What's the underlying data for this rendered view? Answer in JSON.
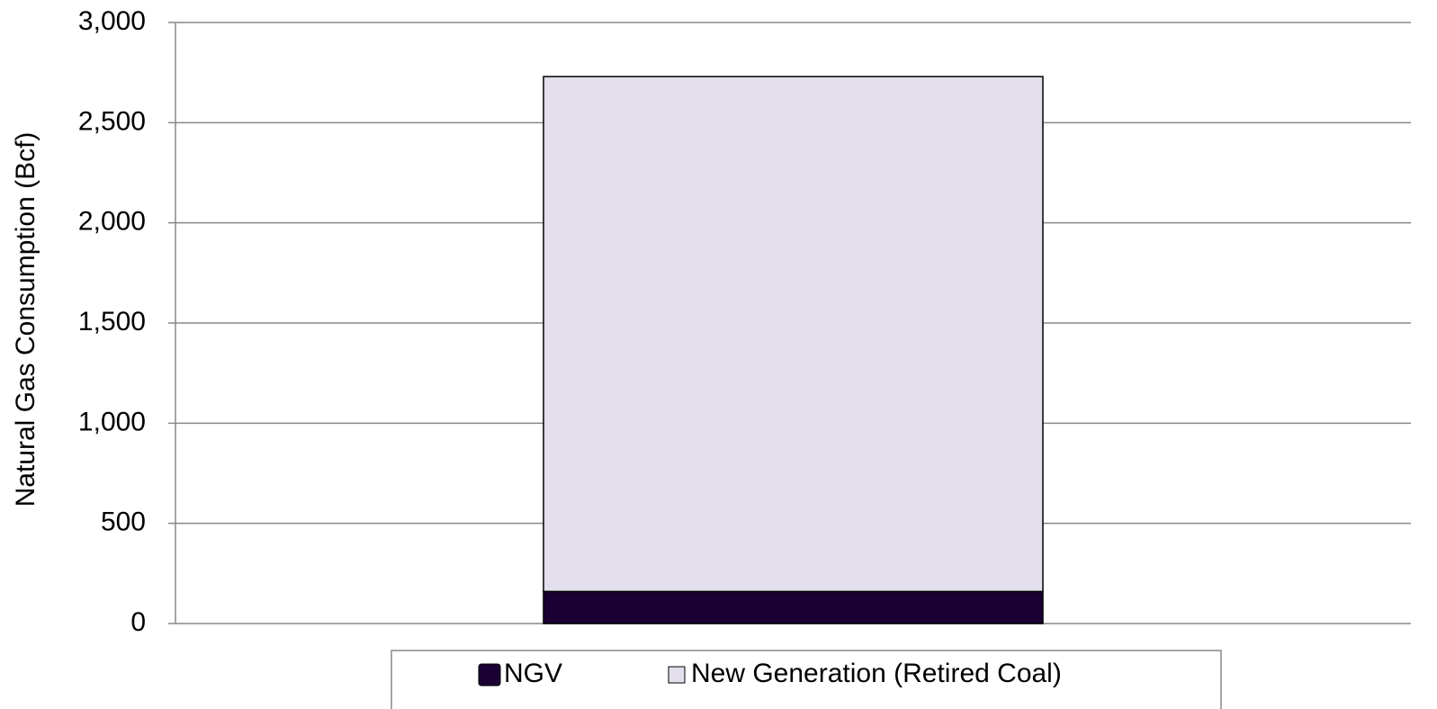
{
  "chart_data": {
    "type": "stacked_bar",
    "y_label": "Natural Gas Consumption (Bcf)",
    "categories": [
      null
    ],
    "series": [
      {
        "name": "NGV",
        "color": "#1a0033",
        "values": [
          160
        ]
      },
      {
        "name": "New Generation (Retired Coal)",
        "color": "#e4dfec",
        "values": [
          2570
        ]
      }
    ],
    "ylim": [
      0,
      3000
    ],
    "yticks": [
      0,
      500,
      {
        "value": 1000,
        "label": "1,000"
      },
      {
        "value": 1500,
        "label": "1,500"
      },
      {
        "value": 2000,
        "label": "2,000"
      },
      {
        "value": 2500,
        "label": "2,500"
      },
      {
        "value": 3000,
        "label": "3,000"
      }
    ],
    "grid": true,
    "legend": "bottom"
  }
}
